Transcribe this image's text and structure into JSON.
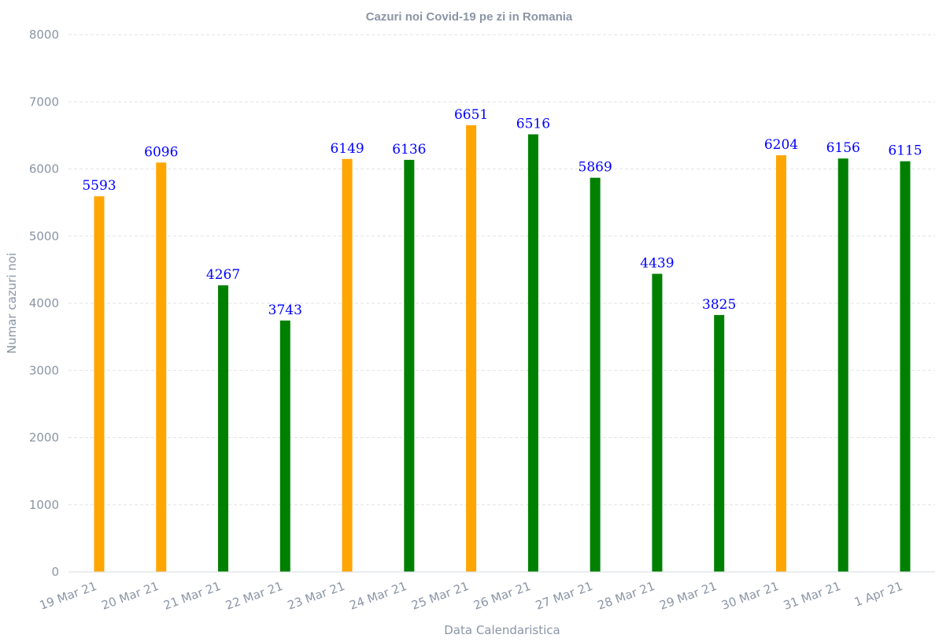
{
  "chart_data": {
    "type": "bar",
    "title": "Cazuri noi Covid-19 pe zi in Romania",
    "xlabel": "Data Calendaristica",
    "ylabel": "Numar cazuri noi",
    "ylim": [
      0,
      8000
    ],
    "yticks": [
      0,
      1000,
      2000,
      3000,
      4000,
      5000,
      6000,
      7000,
      8000
    ],
    "categories": [
      "19 Mar 21",
      "20 Mar 21",
      "21 Mar 21",
      "22 Mar 21",
      "23 Mar 21",
      "24 Mar 21",
      "25 Mar 21",
      "26 Mar 21",
      "27 Mar 21",
      "28 Mar 21",
      "29 Mar 21",
      "30 Mar 21",
      "31 Mar 21",
      "1 Apr 21"
    ],
    "values": [
      5593,
      6096,
      4267,
      3743,
      6149,
      6136,
      6651,
      6516,
      5869,
      4439,
      3825,
      6204,
      6156,
      6115
    ],
    "bar_colors": [
      "#ffa500",
      "#ffa500",
      "#008000",
      "#008000",
      "#ffa500",
      "#008000",
      "#ffa500",
      "#008000",
      "#008000",
      "#008000",
      "#008000",
      "#ffa500",
      "#008000",
      "#008000"
    ],
    "data_label_color": "#0000ff",
    "grid": true,
    "legend": "none"
  }
}
